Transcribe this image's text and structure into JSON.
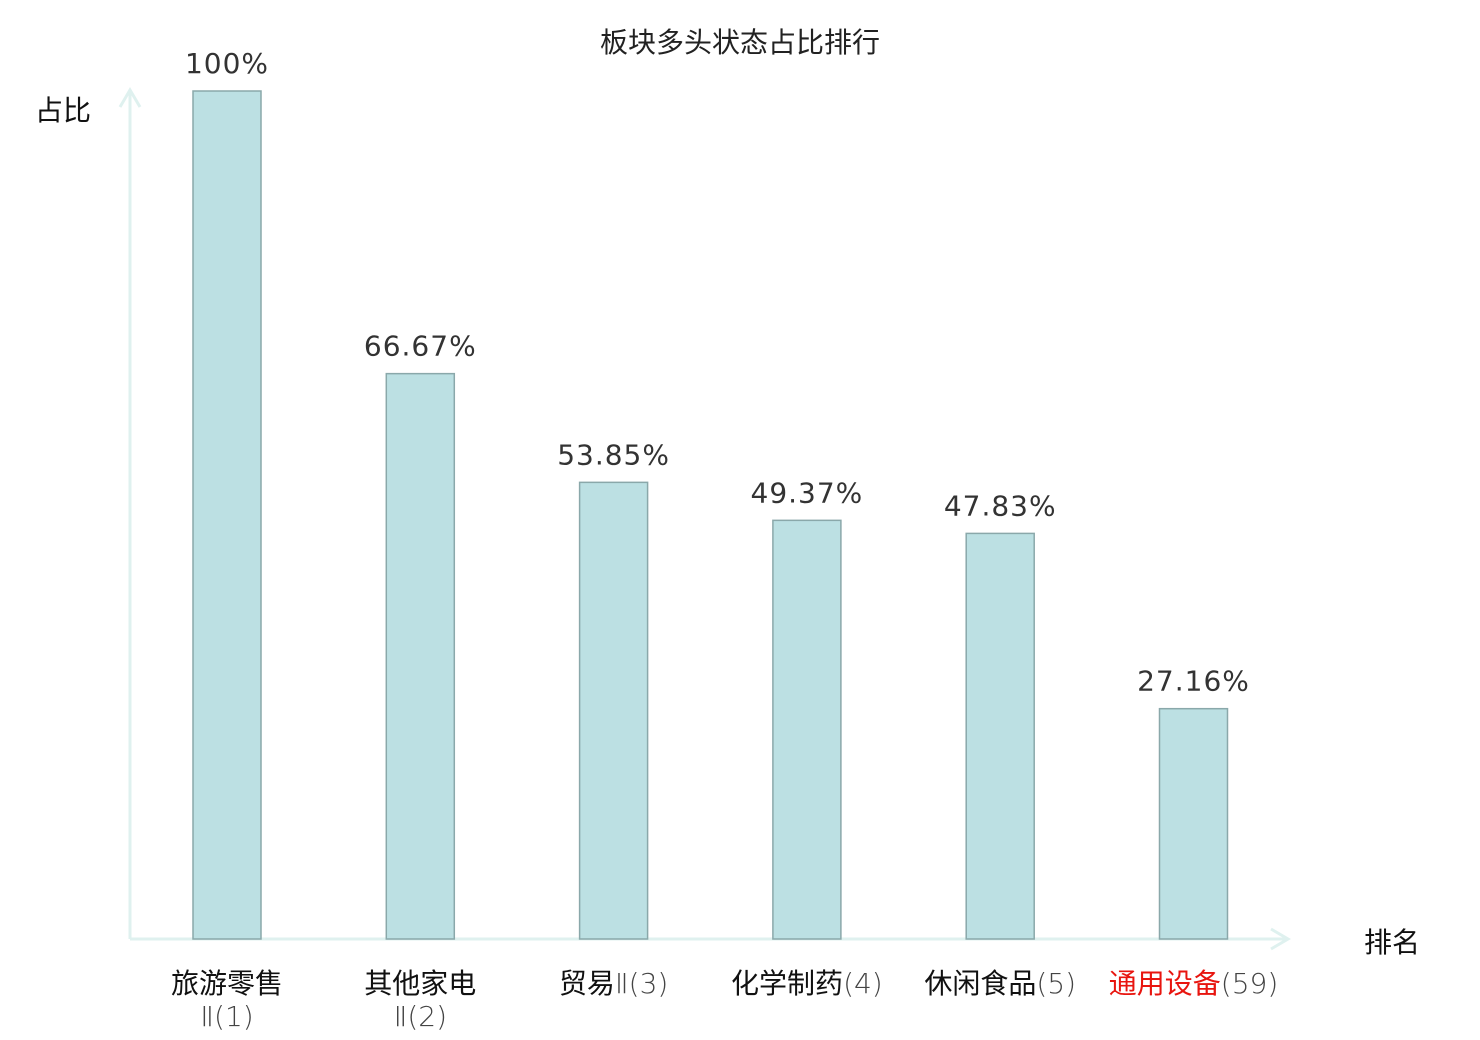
{
  "chart_data": {
    "type": "bar",
    "title": "板块多头状态占比排行",
    "xlabel": "排名",
    "ylabel": "占比",
    "ylim": [
      0,
      100
    ],
    "grid": false,
    "categories": [
      {
        "name": "旅游零售",
        "suffix": "Ⅱ(1)",
        "wrap": true,
        "highlight": false
      },
      {
        "name": "其他家电",
        "suffix": "Ⅱ(2)",
        "wrap": true,
        "highlight": false
      },
      {
        "name": "贸易",
        "suffix": "Ⅱ(3)",
        "wrap": false,
        "highlight": false
      },
      {
        "name": "化学制药",
        "suffix": "(4)",
        "wrap": false,
        "highlight": false
      },
      {
        "name": "休闲食品",
        "suffix": "(5)",
        "wrap": false,
        "highlight": false
      },
      {
        "name": "通用设备",
        "suffix": "(59)",
        "wrap": false,
        "highlight": true
      }
    ],
    "values": [
      100,
      66.67,
      53.85,
      49.37,
      47.83,
      27.16
    ],
    "value_labels": [
      "100%",
      "66.67%",
      "53.85%",
      "49.37%",
      "47.83%",
      "27.16%"
    ]
  },
  "colors": {
    "bar_fill": "#bce0e3",
    "bar_stroke": "#8aa8aa",
    "axis": "#dff1ef",
    "highlight": "#e8150f",
    "text": "#111111"
  }
}
